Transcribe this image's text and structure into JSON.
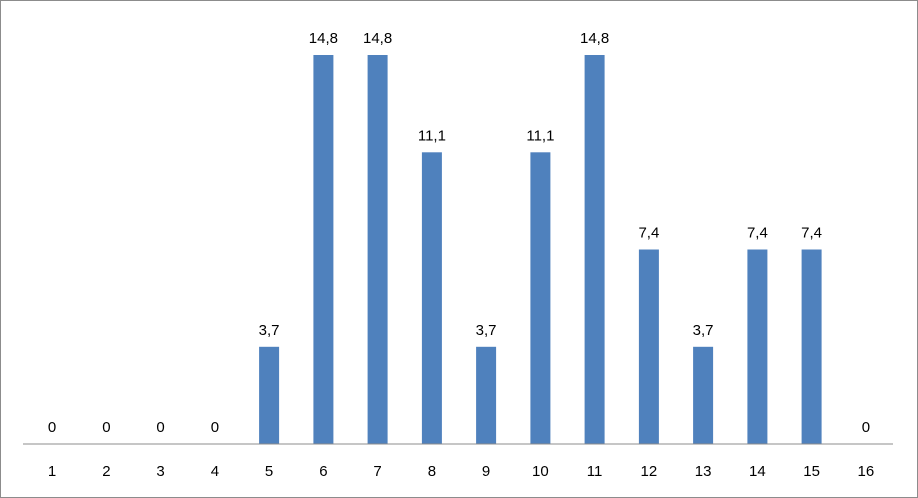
{
  "chart_data": {
    "type": "bar",
    "categories": [
      "1",
      "2",
      "3",
      "4",
      "5",
      "6",
      "7",
      "8",
      "9",
      "10",
      "11",
      "12",
      "13",
      "14",
      "15",
      "16"
    ],
    "values": [
      0,
      0,
      0,
      0,
      3.7,
      14.8,
      14.8,
      11.1,
      3.7,
      11.1,
      14.8,
      7.4,
      3.7,
      7.4,
      7.4,
      0
    ],
    "value_labels": [
      "0",
      "0",
      "0",
      "0",
      "3,7",
      "14,8",
      "14,8",
      "11,1",
      "3,7",
      "11,1",
      "14,8",
      "7,4",
      "3,7",
      "7,4",
      "7,4",
      "0"
    ],
    "ylim": [
      0,
      14.8
    ],
    "bar_color": "#4f81bd",
    "axis_color": "#8c8c8c",
    "grid": false,
    "legend": "none"
  }
}
